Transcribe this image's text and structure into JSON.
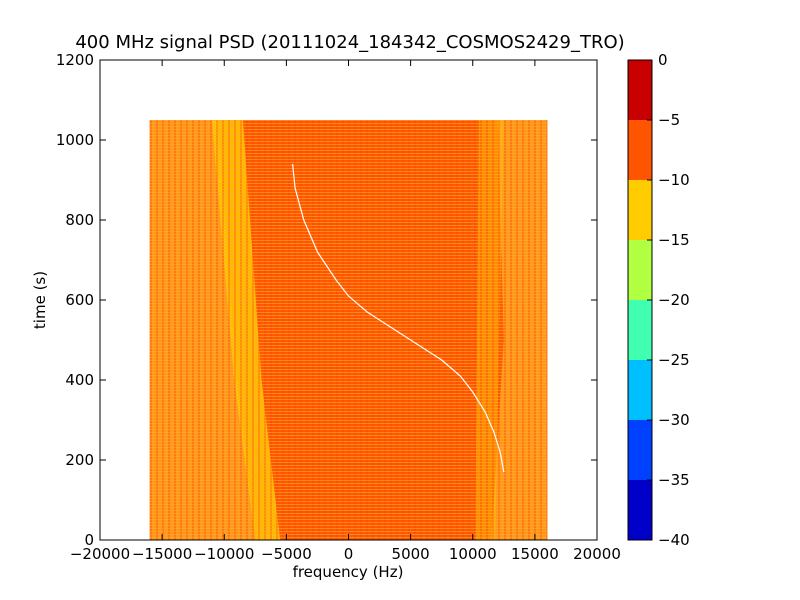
{
  "chart_data": {
    "type": "heatmap",
    "title": "400 MHz signal PSD (20111024_184342_COSMOS2429_TRO)",
    "xlabel": "frequency (Hz)",
    "ylabel": "time (s)",
    "xlim": [
      -20000,
      20000
    ],
    "ylim": [
      0,
      1200
    ],
    "xticks": [
      -20000,
      -15000,
      -10000,
      -5000,
      0,
      5000,
      10000,
      15000,
      20000
    ],
    "yticks": [
      0,
      200,
      400,
      600,
      800,
      1000,
      1200
    ],
    "data_extent": {
      "x": [
        -16000,
        16000
      ],
      "y": [
        0,
        1050
      ]
    },
    "colorbar": {
      "range": [
        -40,
        0
      ],
      "ticks": [
        0,
        -5,
        -10,
        -15,
        -20,
        -25,
        -30,
        -35,
        -40
      ],
      "levels": [
        {
          "from": -40,
          "to": -35,
          "color": "#0000c8"
        },
        {
          "from": -35,
          "to": -30,
          "color": "#0040ff"
        },
        {
          "from": -30,
          "to": -25,
          "color": "#00bfff"
        },
        {
          "from": -25,
          "to": -20,
          "color": "#40ffb0"
        },
        {
          "from": -20,
          "to": -15,
          "color": "#b0ff40"
        },
        {
          "from": -15,
          "to": -10,
          "color": "#ffcc00"
        },
        {
          "from": -10,
          "to": -5,
          "color": "#ff5500"
        },
        {
          "from": -5,
          "to": 0,
          "color": "#c80000"
        }
      ]
    },
    "signal_trace": {
      "x": [
        -4500,
        -4300,
        -3600,
        -2500,
        -1000,
        0,
        1500,
        3000,
        4500,
        6000,
        7500,
        9000,
        10000,
        11000,
        11700,
        12200,
        12500
      ],
      "y": [
        940,
        880,
        800,
        720,
        650,
        610,
        570,
        540,
        510,
        480,
        450,
        410,
        370,
        320,
        270,
        220,
        170
      ],
      "color": "#ffffff"
    },
    "background_color": "#ff5a00",
    "band_color": "#ffcc00",
    "grid": false,
    "legend": "none"
  }
}
